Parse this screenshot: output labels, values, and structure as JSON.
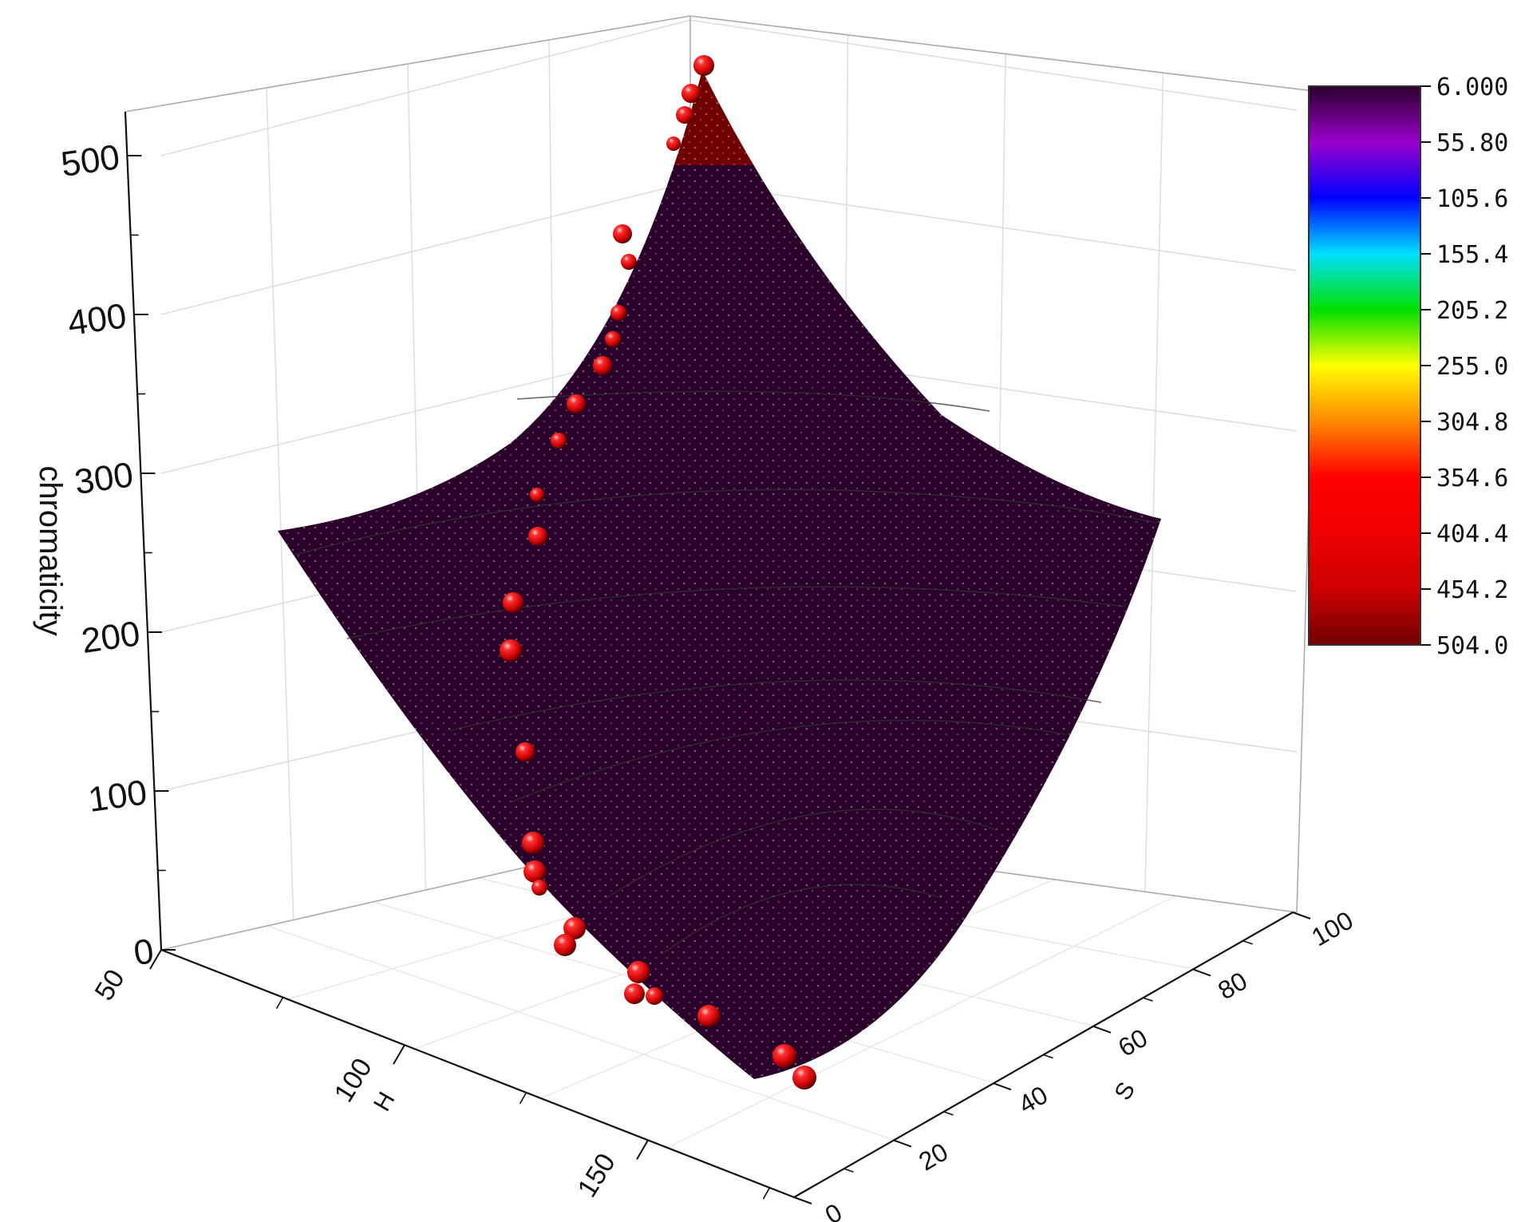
{
  "chart_data": {
    "type": "surface3d",
    "title": "",
    "axes": {
      "z": {
        "label": "chromaticity",
        "range": [
          0,
          520
        ],
        "ticks": [
          0,
          100,
          200,
          300,
          400,
          500
        ]
      },
      "h": {
        "label": "H",
        "range": [
          50,
          180
        ],
        "ticks": [
          50,
          100,
          150
        ]
      },
      "s": {
        "label": "S",
        "range": [
          0,
          100
        ],
        "ticks": [
          0,
          20,
          40,
          60,
          80,
          100
        ]
      }
    },
    "colorbar": {
      "labels": [
        "6.000",
        "55.80",
        "105.6",
        "155.4",
        "205.2",
        "255.0",
        "304.8",
        "354.6",
        "404.4",
        "454.2",
        "504.0"
      ],
      "colors": [
        "#2a002a",
        "#9a00cc",
        "#0000ff",
        "#00e0ff",
        "#00e000",
        "#ffff00",
        "#ff8800",
        "#ff0000",
        "#ee0000",
        "#cc0000",
        "#700000"
      ],
      "range": [
        6.0,
        504.0
      ]
    },
    "contour_levels": [
      50,
      100,
      150,
      200,
      250,
      300,
      350
    ],
    "series": [
      {
        "kind": "scatter",
        "color": "#dd0000",
        "points": [
          {
            "z": 504
          },
          {
            "z": 490
          },
          {
            "z": 480
          },
          {
            "z": 463
          },
          {
            "z": 416
          },
          {
            "z": 402
          },
          {
            "z": 381
          },
          {
            "z": 368
          },
          {
            "z": 354
          },
          {
            "z": 333
          },
          {
            "z": 312
          },
          {
            "z": 285
          },
          {
            "z": 260
          },
          {
            "z": 225
          },
          {
            "z": 195
          },
          {
            "z": 135
          },
          {
            "z": 80
          },
          {
            "z": 65
          },
          {
            "z": 58
          },
          {
            "z": 25
          },
          {
            "z": 18
          },
          {
            "z": 8
          },
          {
            "z": 6
          },
          {
            "z": 5
          },
          {
            "z": 12
          },
          {
            "z": 6
          },
          {
            "z": 4
          }
        ]
      }
    ]
  }
}
